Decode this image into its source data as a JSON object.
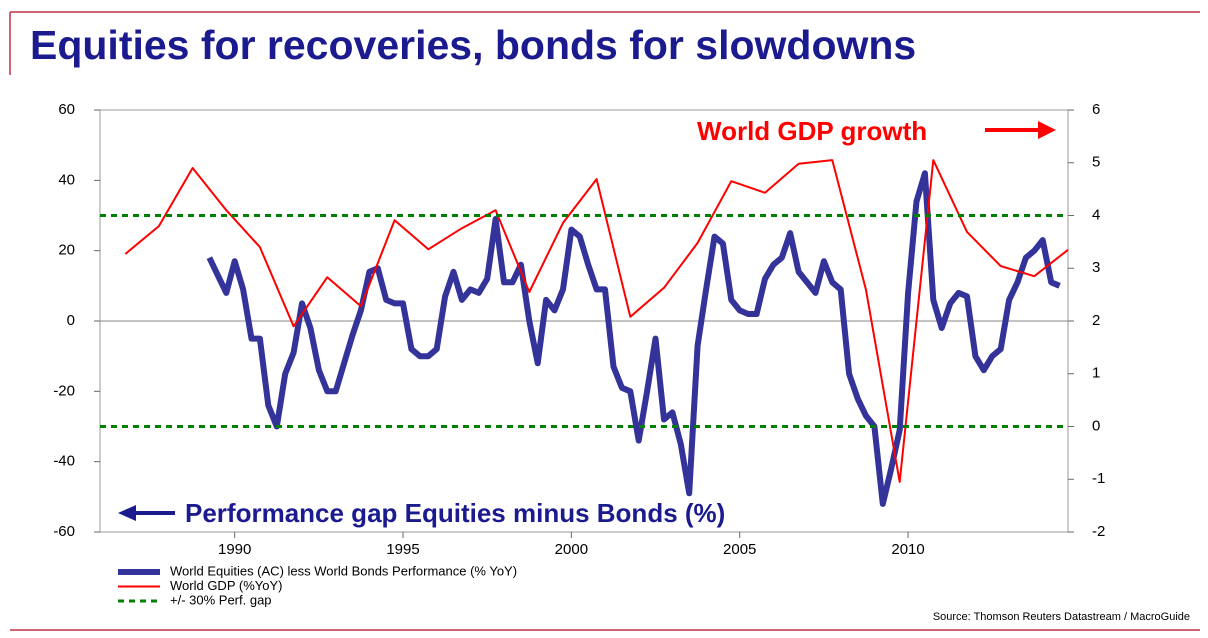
{
  "chart_data": {
    "type": "line",
    "title": "Equities for recoveries, bonds for slowdowns",
    "annotations": [
      {
        "text": "World GDP growth",
        "color": "#ff0000"
      },
      {
        "text": "Performance gap Equities minus Bonds (%)",
        "color": "#1b1b8f"
      }
    ],
    "source": "Source: Thomson Reuters Datastream / MacroGuide",
    "xlim": [
      1986,
      2014.75
    ],
    "xticks": [
      1990,
      1995,
      2000,
      2005,
      2010
    ],
    "ylim": [
      -60,
      60
    ],
    "yticks": [
      -60,
      -40,
      -20,
      0,
      20,
      40,
      60
    ],
    "y2lim": [
      -2,
      6
    ],
    "y2ticks": [
      -2,
      -1,
      0,
      1,
      2,
      3,
      4,
      5,
      6
    ],
    "zero_line": true,
    "series": [
      {
        "name": "World Equities (AC) less World Bonds Performance (% YoY)",
        "color": "#33339a",
        "width": 6,
        "x": [
          1989.25,
          1989.5,
          1989.75,
          1990,
          1990.25,
          1990.5,
          1990.75,
          1991,
          1991.25,
          1991.5,
          1991.75,
          1992,
          1992.25,
          1992.5,
          1992.75,
          1993,
          1993.25,
          1993.5,
          1993.75,
          1994,
          1994.25,
          1994.5,
          1994.75,
          1995,
          1995.25,
          1995.5,
          1995.75,
          1996,
          1996.25,
          1996.5,
          1996.75,
          1997,
          1997.25,
          1997.5,
          1997.75,
          1998,
          1998.25,
          1998.5,
          1998.75,
          1999,
          1999.25,
          1999.5,
          1999.75,
          2000,
          2000.25,
          2000.5,
          2000.75,
          2001,
          2001.25,
          2001.5,
          2001.75,
          2002,
          2002.25,
          2002.5,
          2002.75,
          2003,
          2003.25,
          2003.5,
          2003.75,
          2004,
          2004.25,
          2004.5,
          2004.75,
          2005,
          2005.25,
          2005.5,
          2005.75,
          2006,
          2006.25,
          2006.5,
          2006.75,
          2007,
          2007.25,
          2007.5,
          2007.75,
          2008,
          2008.25,
          2008.5,
          2008.75,
          2009,
          2009.25,
          2009.5,
          2009.75,
          2010,
          2010.25,
          2010.5,
          2010.75,
          2011,
          2011.25,
          2011.5,
          2011.75,
          2012,
          2012.25,
          2012.5,
          2012.75,
          2013,
          2013.25,
          2013.5,
          2013.75,
          2014,
          2014.25,
          2014.5
        ],
        "values": [
          18,
          13,
          8,
          17,
          9,
          -5,
          -5,
          -24,
          -30,
          -15,
          -9,
          5,
          -2,
          -14,
          -20,
          -20,
          -12,
          -4,
          3,
          14,
          15,
          6,
          5,
          5,
          -8,
          -10,
          -10,
          -8,
          7,
          14,
          6,
          9,
          8,
          12,
          29,
          11,
          11,
          16,
          0,
          -12,
          6,
          3,
          9,
          26,
          24,
          16,
          9,
          9,
          -13,
          -19,
          -20,
          -34,
          -20,
          -5,
          -28,
          -26,
          -35,
          -49,
          -7,
          9,
          24,
          22,
          6,
          3,
          2,
          2,
          12,
          16,
          18,
          25,
          14,
          11,
          8,
          17,
          11,
          9,
          -15,
          -22,
          -27,
          -30,
          -52,
          -42,
          -31,
          8,
          34,
          42,
          6,
          -2,
          5,
          8,
          7,
          -10,
          -14,
          -10,
          -8,
          6,
          11,
          18,
          20,
          23,
          11,
          10
        ]
      },
      {
        "name": "World GDP (%YoY)",
        "color": "#ff0000",
        "width": 2,
        "axis": "y2",
        "x": [
          1986.75,
          1987.75,
          1988.75,
          1989.75,
          1990.75,
          1991.75,
          1992.75,
          1993.75,
          1994.75,
          1995.75,
          1996.75,
          1997.75,
          1998.75,
          1999.75,
          2000.75,
          2001.75,
          2002.75,
          2003.75,
          2004.75,
          2005.75,
          2006.75,
          2007.75,
          2008.75,
          2009.75,
          2010.75,
          2011.75,
          2012.75,
          2013.75,
          2014.75
        ],
        "values": [
          3.27,
          3.8,
          4.9,
          4.1,
          3.4,
          1.9,
          2.83,
          2.28,
          3.91,
          3.36,
          3.76,
          4.1,
          2.55,
          3.86,
          4.69,
          2.08,
          2.63,
          3.48,
          4.65,
          4.43,
          4.98,
          5.05,
          2.59,
          -1.05,
          5.05,
          3.69,
          3.04,
          2.85,
          3.35
        ]
      },
      {
        "name": "+/- 30% Perf. gap",
        "color": "#008000",
        "width": 3,
        "dashed": true,
        "hlines": true,
        "values": [
          30,
          -30
        ]
      }
    ]
  }
}
